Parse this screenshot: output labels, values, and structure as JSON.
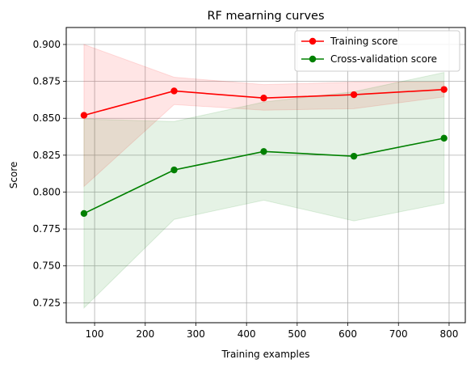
{
  "chart_data": {
    "type": "line",
    "title": "RF mearning curves",
    "xlabel": "Training examples",
    "ylabel": "Score",
    "xlim": [
      44,
      832
    ],
    "ylim": [
      0.7115,
      0.9115
    ],
    "xticks": [
      100,
      200,
      300,
      400,
      500,
      600,
      700,
      800
    ],
    "yticks": [
      0.725,
      0.75,
      0.775,
      0.8,
      0.825,
      0.85,
      0.875,
      0.9
    ],
    "grid": true,
    "legend_position": "top-right",
    "x": [
      79,
      257,
      434,
      612,
      790
    ],
    "series": [
      {
        "name": "Training score",
        "color": "#ff0000",
        "fill_color": "#ff0000",
        "values": [
          0.852,
          0.8685,
          0.8637,
          0.866,
          0.8695
        ],
        "band_upper": [
          0.9,
          0.8778,
          0.8728,
          0.8745,
          0.8745
        ],
        "band_lower": [
          0.8038,
          0.8593,
          0.8555,
          0.8565,
          0.8645
        ]
      },
      {
        "name": "Cross-validation score",
        "color": "#008000",
        "fill_color": "#008000",
        "values": [
          0.7855,
          0.815,
          0.8275,
          0.8243,
          0.8365
        ],
        "band_upper": [
          0.8495,
          0.8478,
          0.861,
          0.868,
          0.881
        ],
        "band_lower": [
          0.7215,
          0.7815,
          0.7945,
          0.7805,
          0.7925
        ]
      }
    ]
  }
}
